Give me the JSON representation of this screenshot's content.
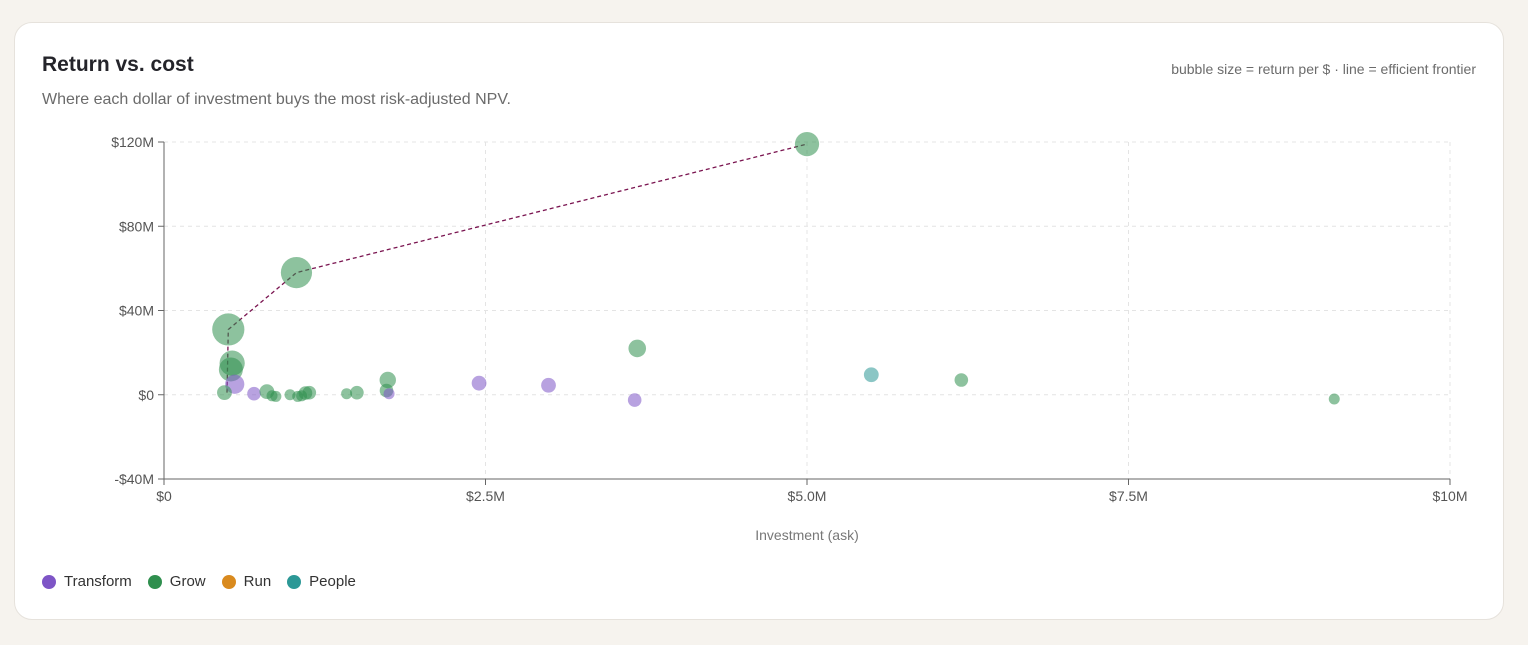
{
  "header": {
    "title": "Return vs. cost",
    "subtitle": "Where each dollar of investment buys the most risk-adjusted NPV.",
    "note": "bubble size = return per $ · line = efficient frontier"
  },
  "colors": {
    "Transform": "#7e55c6",
    "Grow": "#2f8f4e",
    "Run": "#d98a1e",
    "People": "#2c9896",
    "frontier": "#7a1450"
  },
  "legend": [
    {
      "label": "Transform",
      "color": "#7e55c6"
    },
    {
      "label": "Grow",
      "color": "#2f8f4e"
    },
    {
      "label": "Run",
      "color": "#d98a1e"
    },
    {
      "label": "People",
      "color": "#2c9896"
    }
  ],
  "chart_data": {
    "type": "scatter",
    "xlabel": "Investment (ask)",
    "ylabel": "",
    "xlim": [
      0,
      10
    ],
    "ylim": [
      -40,
      120
    ],
    "x_unit": "$M",
    "y_unit": "$M",
    "x_ticks": [
      {
        "value": 0,
        "label": "$0"
      },
      {
        "value": 2.5,
        "label": "$2.5M"
      },
      {
        "value": 5,
        "label": "$5.0M"
      },
      {
        "value": 7.5,
        "label": "$7.5M"
      },
      {
        "value": 10,
        "label": "$10M"
      }
    ],
    "y_ticks": [
      {
        "value": 120,
        "label": "$120M"
      },
      {
        "value": 80,
        "label": "$80M"
      },
      {
        "value": 40,
        "label": "$40M"
      },
      {
        "value": 0,
        "label": "$0"
      },
      {
        "value": -40,
        "label": "-$40M"
      }
    ],
    "grid": true,
    "legend_position": "bottom-left",
    "points": [
      {
        "category": "Grow",
        "x": 0.5,
        "y": 31
      },
      {
        "category": "Grow",
        "x": 1.03,
        "y": 58
      },
      {
        "category": "Grow",
        "x": 5.0,
        "y": 119
      },
      {
        "category": "Grow",
        "x": 0.53,
        "y": 15
      },
      {
        "category": "Grow",
        "x": 0.52,
        "y": 12
      },
      {
        "category": "Transform",
        "x": 0.55,
        "y": 5
      },
      {
        "category": "Grow",
        "x": 0.47,
        "y": 1
      },
      {
        "category": "Transform",
        "x": 0.7,
        "y": 0.5
      },
      {
        "category": "Grow",
        "x": 0.8,
        "y": 1.5
      },
      {
        "category": "Grow",
        "x": 0.84,
        "y": -0.5
      },
      {
        "category": "Grow",
        "x": 0.87,
        "y": -0.8
      },
      {
        "category": "Grow",
        "x": 0.98,
        "y": 0
      },
      {
        "category": "Grow",
        "x": 1.04,
        "y": -0.8
      },
      {
        "category": "Grow",
        "x": 1.07,
        "y": -0.5
      },
      {
        "category": "Grow",
        "x": 1.1,
        "y": 0.8
      },
      {
        "category": "Grow",
        "x": 1.13,
        "y": 1
      },
      {
        "category": "Grow",
        "x": 1.42,
        "y": 0.5
      },
      {
        "category": "Grow",
        "x": 1.5,
        "y": 1
      },
      {
        "category": "Grow",
        "x": 1.74,
        "y": 7
      },
      {
        "category": "Grow",
        "x": 1.73,
        "y": 2
      },
      {
        "category": "Transform",
        "x": 1.75,
        "y": 0.5
      },
      {
        "category": "Transform",
        "x": 2.45,
        "y": 5.5
      },
      {
        "category": "Transform",
        "x": 2.99,
        "y": 4.5
      },
      {
        "category": "Transform",
        "x": 3.66,
        "y": -2.5
      },
      {
        "category": "Grow",
        "x": 3.68,
        "y": 22
      },
      {
        "category": "People",
        "x": 5.5,
        "y": 9.5
      },
      {
        "category": "Grow",
        "x": 6.2,
        "y": 7
      },
      {
        "category": "Grow",
        "x": 9.1,
        "y": -2
      }
    ],
    "frontier": [
      {
        "x": 0.49,
        "y": 1
      },
      {
        "x": 0.5,
        "y": 31
      },
      {
        "x": 1.03,
        "y": 58
      },
      {
        "x": 5.0,
        "y": 119
      }
    ],
    "return_per_dollar": [
      62,
      56,
      24,
      28,
      23,
      9,
      2,
      1,
      2,
      0,
      0,
      0,
      0,
      0,
      1,
      1,
      0,
      1,
      4,
      1,
      0,
      2,
      2,
      1,
      6,
      2,
      1,
      0
    ]
  }
}
